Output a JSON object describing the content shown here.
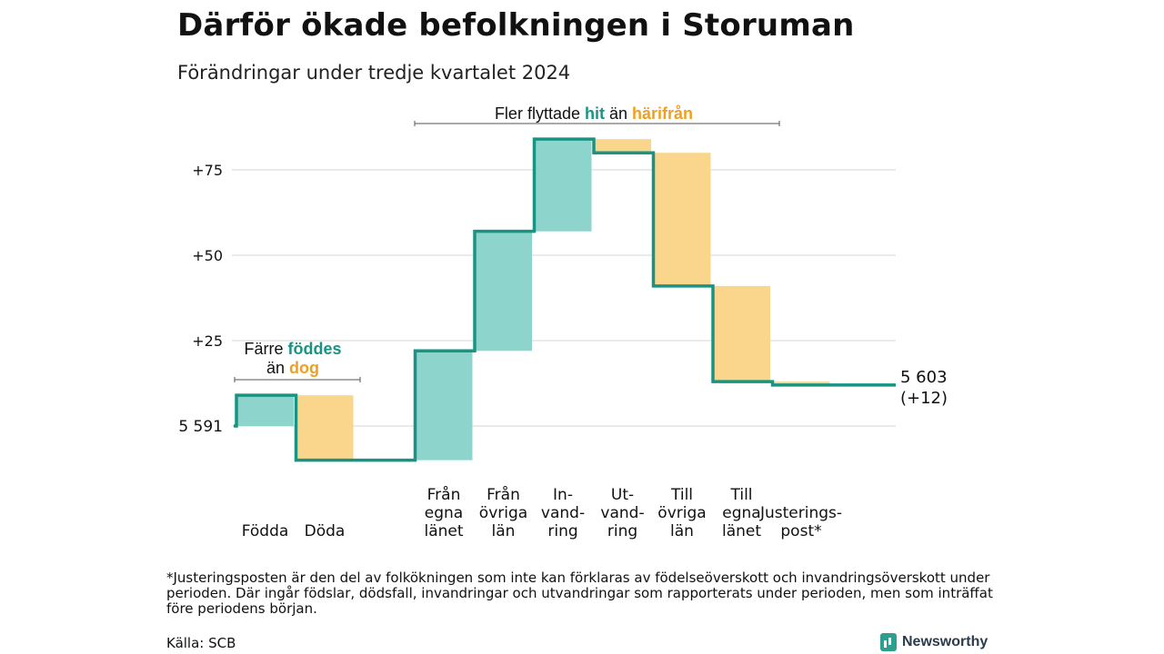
{
  "title": "Därför ökade befolkningen i Storuman",
  "subtitle": "Förändringar under tredje kvartalet 2024",
  "colors": {
    "positive": "#8dd5cc",
    "negative": "#fad68c",
    "line": "#1a9383",
    "positive_text": "#1a9383",
    "negative_text": "#f0a020",
    "grid": "#dddddd"
  },
  "annotations": {
    "birth": {
      "part1": "Färre",
      "part2": "föddes",
      "part3": "än",
      "part4": "dog"
    },
    "migration": {
      "part1": "Fler flyttade",
      "part2": "hit",
      "part3": "än",
      "part4": "härifrån"
    }
  },
  "chart_data": {
    "type": "waterfall",
    "start_label": "5 591",
    "end_label_value": "5 603",
    "end_label_change": "(+12)",
    "y_ticks": [
      "+25",
      "+50",
      "+75"
    ],
    "y_tick_values": [
      25,
      50,
      75
    ],
    "ylim": [
      -10,
      85
    ],
    "steps": [
      {
        "label": [
          "Födda"
        ],
        "change": 9
      },
      {
        "label": [
          "Döda"
        ],
        "change": -19
      },
      {
        "label": [],
        "change": 0
      },
      {
        "label": [
          "Från",
          "egna",
          "länet"
        ],
        "change": 32
      },
      {
        "label": [
          "Från",
          "övriga",
          "län"
        ],
        "change": 35
      },
      {
        "label": [
          "In-",
          "vand-",
          "ring"
        ],
        "change": 27
      },
      {
        "label": [
          "Ut-",
          "vand-",
          "ring"
        ],
        "change": -4
      },
      {
        "label": [
          "Till",
          "övriga",
          "län"
        ],
        "change": -39
      },
      {
        "label": [
          "Till",
          "egna",
          "länet"
        ],
        "change": -28
      },
      {
        "label": [
          "Justerings-",
          "post*"
        ],
        "change": -1
      }
    ],
    "end_value": 12
  },
  "footnote": "*Justeringsposten är den del av folkökningen som inte kan förklaras av födelseöverskott och invandringsöverskott under perioden. Där ingår födslar, dödsfall, invandringar och utvandringar som rapporterats under perioden, men som inträffat före periodens början.",
  "source": "Källa: SCB",
  "logo_text": "Newsworthy"
}
